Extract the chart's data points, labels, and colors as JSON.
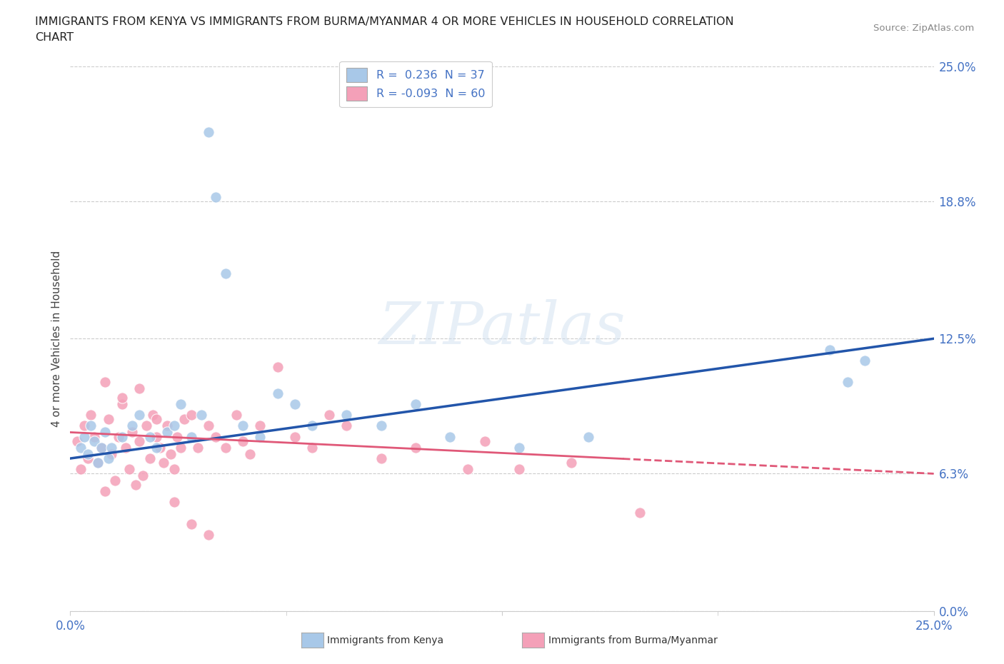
{
  "title_line1": "IMMIGRANTS FROM KENYA VS IMMIGRANTS FROM BURMA/MYANMAR 4 OR MORE VEHICLES IN HOUSEHOLD CORRELATION",
  "title_line2": "CHART",
  "source": "Source: ZipAtlas.com",
  "ylabel": "4 or more Vehicles in Household",
  "ytick_labels": [
    "0.0%",
    "6.3%",
    "12.5%",
    "18.8%",
    "25.0%"
  ],
  "ytick_values": [
    0.0,
    6.3,
    12.5,
    18.8,
    25.0
  ],
  "xtick_labels": [
    "0.0%",
    "25.0%"
  ],
  "xtick_values": [
    0.0,
    25.0
  ],
  "xlim": [
    0.0,
    25.0
  ],
  "ylim": [
    0.0,
    25.0
  ],
  "watermark": "ZIPatlas",
  "kenya_color": "#a8c8e8",
  "burma_color": "#f4a0b8",
  "kenya_line_color": "#2255aa",
  "burma_line_color": "#e05878",
  "kenya_R": 0.236,
  "kenya_N": 37,
  "burma_R": -0.093,
  "burma_N": 60,
  "kenya_line_x0": 0.0,
  "kenya_line_y0": 7.0,
  "kenya_line_x1": 25.0,
  "kenya_line_y1": 12.5,
  "burma_line_x0": 0.0,
  "burma_line_y0": 8.2,
  "burma_line_x1": 25.0,
  "burma_line_y1": 6.3,
  "burma_solid_end": 16.0,
  "kenya_x": [
    0.3,
    0.4,
    0.5,
    0.6,
    0.7,
    0.8,
    0.9,
    1.0,
    1.1,
    1.2,
    1.5,
    1.8,
    2.0,
    2.3,
    2.5,
    2.8,
    3.0,
    3.2,
    3.5,
    3.8,
    4.0,
    4.2,
    4.5,
    5.0,
    5.5,
    6.0,
    6.5,
    7.0,
    8.0,
    9.0,
    10.0,
    11.0,
    13.0,
    15.0,
    22.0,
    23.0,
    22.5
  ],
  "kenya_y": [
    7.5,
    8.0,
    7.2,
    8.5,
    7.8,
    6.8,
    7.5,
    8.2,
    7.0,
    7.5,
    8.0,
    8.5,
    9.0,
    8.0,
    7.5,
    8.2,
    8.5,
    9.5,
    8.0,
    9.0,
    22.0,
    19.0,
    15.5,
    8.5,
    8.0,
    10.0,
    9.5,
    8.5,
    9.0,
    8.5,
    9.5,
    8.0,
    7.5,
    8.0,
    12.0,
    11.5,
    10.5
  ],
  "burma_x": [
    0.2,
    0.3,
    0.4,
    0.5,
    0.6,
    0.7,
    0.8,
    0.9,
    1.0,
    1.1,
    1.2,
    1.3,
    1.4,
    1.5,
    1.6,
    1.7,
    1.8,
    1.9,
    2.0,
    2.1,
    2.2,
    2.3,
    2.4,
    2.5,
    2.6,
    2.7,
    2.8,
    2.9,
    3.0,
    3.1,
    3.2,
    3.3,
    3.5,
    3.7,
    4.0,
    4.2,
    4.5,
    4.8,
    5.0,
    5.2,
    5.5,
    6.0,
    6.5,
    7.0,
    7.5,
    8.0,
    9.0,
    10.0,
    11.5,
    12.0,
    13.0,
    14.5,
    16.5,
    1.0,
    1.5,
    2.0,
    2.5,
    3.0,
    3.5,
    4.0
  ],
  "burma_y": [
    7.8,
    6.5,
    8.5,
    7.0,
    9.0,
    8.0,
    6.8,
    7.5,
    5.5,
    8.8,
    7.2,
    6.0,
    8.0,
    9.5,
    7.5,
    6.5,
    8.2,
    5.8,
    7.8,
    6.2,
    8.5,
    7.0,
    9.0,
    8.0,
    7.5,
    6.8,
    8.5,
    7.2,
    6.5,
    8.0,
    7.5,
    8.8,
    9.0,
    7.5,
    8.5,
    8.0,
    7.5,
    9.0,
    7.8,
    7.2,
    8.5,
    11.2,
    8.0,
    7.5,
    9.0,
    8.5,
    7.0,
    7.5,
    6.5,
    7.8,
    6.5,
    6.8,
    4.5,
    10.5,
    9.8,
    10.2,
    8.8,
    5.0,
    4.0,
    3.5
  ]
}
